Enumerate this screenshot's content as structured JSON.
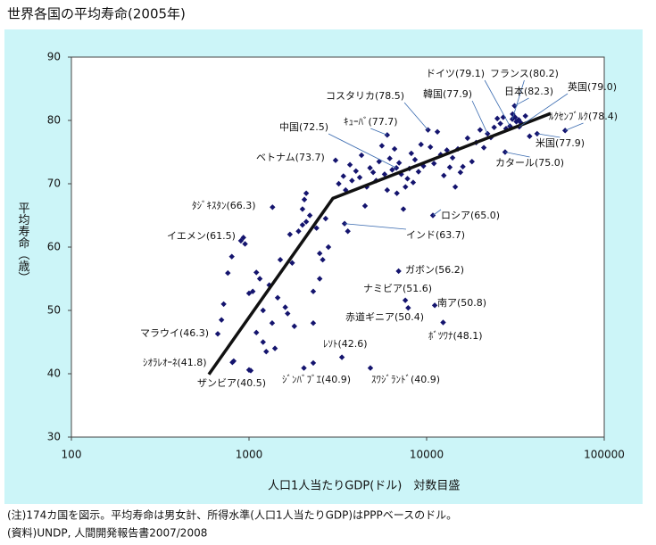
{
  "chart_data": {
    "type": "scatter",
    "title": "世界各国の平均寿命(2005年)",
    "x_label": "人口1人当たりGDP(ドル)　対数目盛",
    "y_label": "平均寿命（歳）",
    "log_x": true,
    "color": "#14146e",
    "line_color": "#111111",
    "xlim": [
      100,
      100000
    ],
    "xticks": [
      100,
      1000,
      10000,
      100000
    ],
    "ylim": [
      30,
      90
    ],
    "yticks": [
      30,
      40,
      50,
      60,
      70,
      80,
      90
    ],
    "x": [
      29461,
      30386,
      33238,
      31267,
      22029,
      10180,
      60228,
      6000,
      6757,
      41890,
      3071,
      27664,
      1356,
      10845,
      930,
      3452,
      6954,
      7586,
      11110,
      7874,
      667,
      12387,
      3335,
      806,
      1023,
      2038,
      4824,
      700,
      720,
      760,
      800,
      820,
      900,
      950,
      1000,
      1050,
      1100,
      1100,
      1150,
      1200,
      1200,
      1250,
      1300,
      1350,
      1400,
      1450,
      1500,
      1600,
      1650,
      1700,
      1750,
      1800,
      1900,
      2000,
      2000,
      2050,
      2100,
      2100,
      2200,
      2300,
      2300,
      2400,
      2500,
      2500,
      2600,
      2700,
      2800,
      2300,
      1000,
      3200,
      3400,
      3500,
      3600,
      3700,
      3800,
      4000,
      4200,
      4300,
      4500,
      4600,
      4800,
      5000,
      5200,
      5400,
      5600,
      5800,
      6000,
      6200,
      6400,
      6600,
      6800,
      7000,
      7200,
      7400,
      7600,
      7800,
      8000,
      8200,
      8400,
      8600,
      9000,
      9300,
      9600,
      10500,
      11000,
      11500,
      12000,
      12500,
      13000,
      13500,
      14000,
      14500,
      15000,
      15500,
      16000,
      17000,
      18000,
      19000,
      20000,
      21000,
      23000,
      24000,
      25000,
      26000,
      27000,
      28000,
      30500,
      31500,
      32000,
      33000,
      34000,
      36000,
      38000
    ],
    "values": [
      79.1,
      80.2,
      79.0,
      82.3,
      77.9,
      78.5,
      78.4,
      77.7,
      72.5,
      77.9,
      73.7,
      75.0,
      66.3,
      65.0,
      61.5,
      63.7,
      56.2,
      51.6,
      50.8,
      50.4,
      46.3,
      48.1,
      42.6,
      41.8,
      40.5,
      40.9,
      40.9,
      48.5,
      51,
      55.9,
      58.5,
      42,
      61,
      60.5,
      52.7,
      53,
      46.5,
      56,
      55,
      45,
      50,
      43.5,
      54,
      48,
      44,
      52,
      58,
      50.5,
      49.5,
      62,
      57.5,
      47.5,
      62.5,
      63.5,
      66,
      67.5,
      64,
      68.5,
      65,
      48,
      53,
      63,
      59,
      55,
      58,
      64.5,
      60,
      41.7,
      40.6,
      70,
      71.2,
      69,
      62.5,
      73,
      70.5,
      72,
      71,
      74.5,
      66.5,
      69.5,
      72.5,
      71.8,
      70.5,
      73.5,
      76,
      71.5,
      69,
      74,
      72.2,
      75.5,
      68.5,
      73.3,
      71.5,
      66,
      69.5,
      70.8,
      72.4,
      74.8,
      70.2,
      73.8,
      71.9,
      76.2,
      72.8,
      75.8,
      73.2,
      78.2,
      74.6,
      71.3,
      75.3,
      72.6,
      74.1,
      69.5,
      75.5,
      71.8,
      72.7,
      77.2,
      73.5,
      76.5,
      78.5,
      75.7,
      77.3,
      78.9,
      80.3,
      79.5,
      80.5,
      78.7,
      81,
      80.5,
      79.8,
      80.1,
      79.6,
      80.7,
      77.5
    ],
    "trend": {
      "x": [
        594,
        2967,
        49900
      ],
      "values": [
        39.9,
        67.7,
        81.1
      ]
    },
    "annotations": [
      "ドイツ(79.1)",
      "フランス(80.2)",
      "英国(79.0)",
      "日本(82.3)",
      "韓国(77.9)",
      "コスタリカ(78.5)",
      "ﾙｸｾﾝﾌﾞﾙｸ(78.4)",
      "ｷｭｰﾊﾞ(77.7)",
      "中国(72.5)",
      "米国(77.9)",
      "ベトナム(73.7)",
      "カタール(75.0)",
      "ﾀｼﾞｷｽﾀﾝ(66.3)",
      "ロシア(65.0)",
      "イエメン(61.5)",
      "インド(63.7)",
      "ガボン(56.2)",
      "ナミビア(51.6)",
      "南ア(50.8)",
      "赤道ギニア(50.4)",
      "マラウイ(46.3)",
      "ﾎﾞﾂﾜﾅ(48.1)",
      "ﾚｿﾄ(42.6)",
      "ｼｵﾗﾚｵｰﾈ(41.8)",
      "ザンビア(40.5)",
      "ｼﾞﾝﾊﾞﾌﾞｴ(40.9)",
      "ｽﾜｼﾞﾗﾝﾄﾞ(40.9)"
    ],
    "notes": [
      "(注)174カ国を図示。平均寿命は男女計、所得水準(人口1人当たりGDP)はPPPベースのドル。",
      "(資料)UNDP, 人間開発報告書2007/2008"
    ]
  }
}
